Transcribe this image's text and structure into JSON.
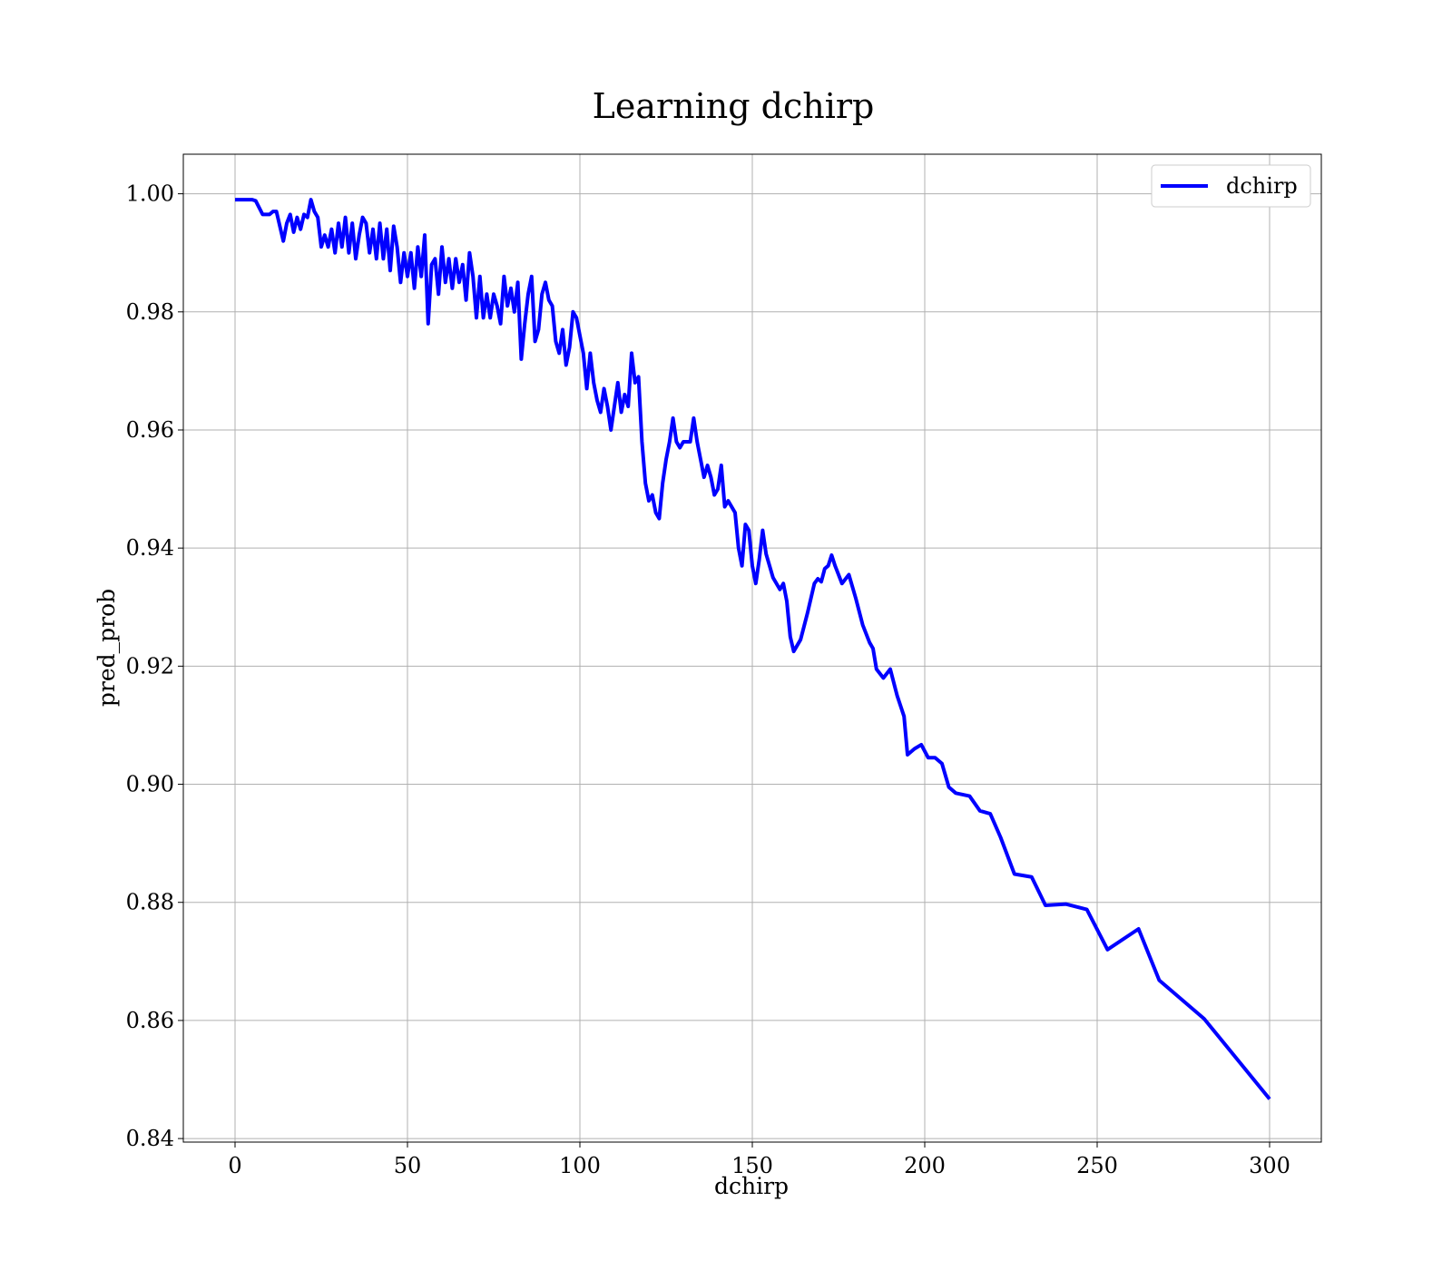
{
  "chart_data": {
    "type": "line",
    "title": "Learning dchirp",
    "xlabel": "dchirp",
    "ylabel": "pred_prob",
    "x": [
      0,
      5,
      6,
      8,
      10,
      11,
      12,
      13,
      14,
      15,
      16,
      17,
      18,
      19,
      20,
      21,
      22,
      23,
      24,
      25,
      26,
      27,
      28,
      29,
      30,
      31,
      32,
      33,
      34,
      35,
      36,
      37,
      38,
      39,
      40,
      41,
      42,
      43,
      44,
      45,
      46,
      47,
      48,
      49,
      50,
      51,
      52,
      53,
      54,
      55,
      56,
      57,
      58,
      59,
      60,
      61,
      62,
      63,
      64,
      65,
      66,
      67,
      68,
      69,
      70,
      71,
      72,
      73,
      74,
      75,
      76,
      77,
      78,
      79,
      80,
      81,
      82,
      83,
      84,
      85,
      86,
      87,
      88,
      89,
      90,
      91,
      92,
      93,
      94,
      95,
      96,
      97,
      98,
      99,
      100,
      101,
      102,
      103,
      104,
      105,
      106,
      107,
      108,
      109,
      110,
      111,
      112,
      113,
      114,
      115,
      116,
      117,
      118,
      119,
      120,
      121,
      122,
      123,
      124,
      125,
      126,
      127,
      128,
      129,
      130,
      131,
      132,
      133,
      134,
      135,
      136,
      137,
      138,
      139,
      140,
      141,
      142,
      143,
      144,
      145,
      146,
      147,
      148,
      149,
      150,
      151,
      152,
      153,
      154,
      155,
      156,
      157,
      158,
      159,
      160,
      161,
      162,
      164,
      166,
      168,
      169,
      170,
      171,
      172,
      173,
      174,
      176,
      178,
      180,
      182,
      184,
      185,
      186,
      188,
      190,
      192,
      194,
      195,
      197,
      199,
      201,
      203,
      205,
      207,
      209,
      213,
      216,
      219,
      222,
      226,
      231,
      235,
      241,
      247,
      253,
      262,
      268,
      281,
      300
    ],
    "series": [
      {
        "name": "dchirp",
        "color": "#0000ff",
        "values": [
          0.999,
          0.999,
          0.9988,
          0.9965,
          0.9965,
          0.997,
          0.997,
          0.9945,
          0.992,
          0.995,
          0.9965,
          0.9935,
          0.996,
          0.994,
          0.9965,
          0.996,
          0.999,
          0.997,
          0.996,
          0.991,
          0.993,
          0.991,
          0.994,
          0.99,
          0.995,
          0.991,
          0.996,
          0.99,
          0.995,
          0.989,
          0.993,
          0.996,
          0.995,
          0.99,
          0.994,
          0.989,
          0.995,
          0.989,
          0.994,
          0.987,
          0.9945,
          0.991,
          0.985,
          0.99,
          0.986,
          0.99,
          0.984,
          0.991,
          0.986,
          0.993,
          0.978,
          0.988,
          0.989,
          0.983,
          0.991,
          0.985,
          0.989,
          0.984,
          0.989,
          0.985,
          0.988,
          0.982,
          0.99,
          0.986,
          0.979,
          0.986,
          0.979,
          0.983,
          0.979,
          0.983,
          0.981,
          0.978,
          0.986,
          0.981,
          0.984,
          0.98,
          0.985,
          0.972,
          0.978,
          0.983,
          0.986,
          0.975,
          0.977,
          0.983,
          0.985,
          0.982,
          0.981,
          0.975,
          0.973,
          0.977,
          0.971,
          0.974,
          0.98,
          0.979,
          0.976,
          0.973,
          0.967,
          0.973,
          0.968,
          0.965,
          0.963,
          0.967,
          0.964,
          0.96,
          0.964,
          0.968,
          0.963,
          0.966,
          0.964,
          0.973,
          0.968,
          0.969,
          0.958,
          0.951,
          0.948,
          0.949,
          0.946,
          0.945,
          0.951,
          0.955,
          0.958,
          0.962,
          0.958,
          0.957,
          0.958,
          0.958,
          0.958,
          0.962,
          0.958,
          0.955,
          0.952,
          0.954,
          0.952,
          0.949,
          0.95,
          0.954,
          0.947,
          0.948,
          0.947,
          0.946,
          0.94,
          0.937,
          0.944,
          0.943,
          0.937,
          0.934,
          0.938,
          0.943,
          0.939,
          0.937,
          0.935,
          0.934,
          0.933,
          0.934,
          0.931,
          0.925,
          0.9225,
          0.9245,
          0.929,
          0.934,
          0.9348,
          0.9343,
          0.9365,
          0.937,
          0.9388,
          0.937,
          0.934,
          0.9355,
          0.9315,
          0.927,
          0.924,
          0.923,
          0.9195,
          0.918,
          0.9195,
          0.915,
          0.9115,
          0.905,
          0.906,
          0.9067,
          0.9045,
          0.9045,
          0.9035,
          0.8995,
          0.8985,
          0.898,
          0.8955,
          0.895,
          0.891,
          0.8848,
          0.8843,
          0.8795,
          0.8797,
          0.8788,
          0.872,
          0.8755,
          0.8668,
          0.8603,
          0.8467
        ]
      }
    ],
    "xlim": [
      -15,
      315
    ],
    "ylim": [
      0.8394,
      1.0067
    ],
    "xticks": [
      0,
      50,
      100,
      150,
      200,
      250,
      300
    ],
    "yticks": [
      {
        "value": 0.84,
        "label": "0.84"
      },
      {
        "value": 0.86,
        "label": "0.86"
      },
      {
        "value": 0.88,
        "label": "0.88"
      },
      {
        "value": 0.9,
        "label": "0.90"
      },
      {
        "value": 0.92,
        "label": "0.92"
      },
      {
        "value": 0.94,
        "label": "0.94"
      },
      {
        "value": 0.96,
        "label": "0.96"
      },
      {
        "value": 0.98,
        "label": "0.98"
      },
      {
        "value": 1.0,
        "label": "1.00"
      }
    ],
    "grid": true,
    "legend": "upper right"
  }
}
